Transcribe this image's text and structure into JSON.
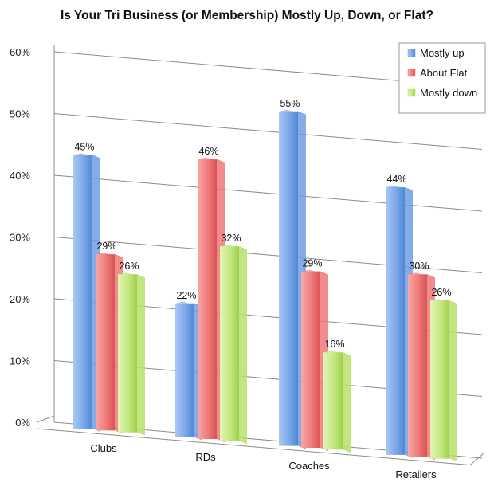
{
  "chart_data": {
    "type": "bar",
    "title": "Is Your Tri Business (or Membership) Mostly Up, Down, or Flat?",
    "xlabel": "",
    "ylabel": "",
    "ylim": [
      0,
      60
    ],
    "y_ticks": [
      "0%",
      "10%",
      "20%",
      "30%",
      "40%",
      "50%",
      "60%"
    ],
    "grid": true,
    "legend_position": "top-right",
    "categories": [
      "Clubs",
      "RDs",
      "Coaches",
      "Retailers"
    ],
    "series": [
      {
        "name": "Mostly up",
        "values": [
          45,
          22,
          55,
          44
        ],
        "labels": [
          "45%",
          "22%",
          "55%",
          "44%"
        ],
        "color": "#6f9fe0"
      },
      {
        "name": "About Flat",
        "values": [
          29,
          46,
          29,
          30
        ],
        "labels": [
          "29%",
          "46%",
          "29%",
          "30%"
        ],
        "color": "#f07878"
      },
      {
        "name": "Mostly down",
        "values": [
          26,
          32,
          16,
          26
        ],
        "labels": [
          "26%",
          "32%",
          "16%",
          "26%"
        ],
        "color": "#b9e06a"
      }
    ]
  }
}
